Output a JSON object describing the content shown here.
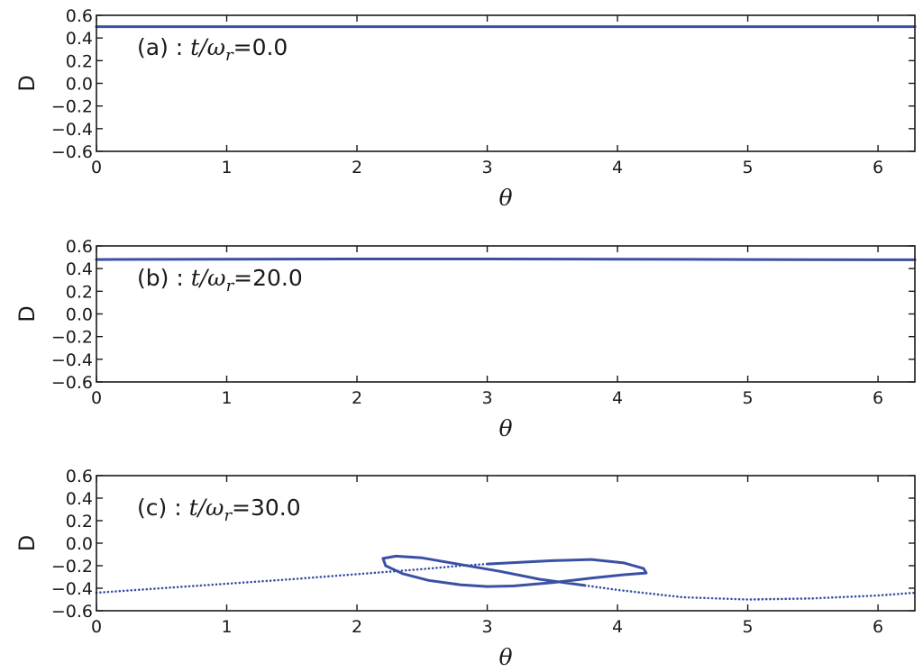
{
  "colors": {
    "series": "#3a50a4",
    "axes": "#1a1a1a",
    "background": "#ffffff"
  },
  "chart_data": [
    {
      "type": "line",
      "panel": "a",
      "annotation": {
        "prefix": "(a) : ",
        "math_t": "t",
        "math_slash": "/",
        "math_omega": "ω",
        "math_sub": "r",
        "value": "=0.0"
      },
      "xlabel": "θ",
      "ylabel": "D",
      "xlim": [
        0,
        6.283
      ],
      "ylim": [
        -0.6,
        0.6
      ],
      "xticks": [
        "0",
        "1",
        "2",
        "3",
        "4",
        "5",
        "6"
      ],
      "yticks": [
        "0.6",
        "0.4",
        "0.2",
        "0.0",
        "−0.2",
        "−0.4",
        "−0.6"
      ],
      "series": [
        {
          "style": "solid",
          "x": [
            0,
            1,
            2,
            3,
            4,
            5,
            6,
            6.283
          ],
          "y": [
            0.5,
            0.5,
            0.5,
            0.5,
            0.5,
            0.5,
            0.5,
            0.5
          ]
        }
      ]
    },
    {
      "type": "line",
      "panel": "b",
      "annotation": {
        "prefix": "(b) : ",
        "math_t": "t",
        "math_slash": "/",
        "math_omega": "ω",
        "math_sub": "r",
        "value": "=20.0"
      },
      "xlabel": "θ",
      "ylabel": "D",
      "xlim": [
        0,
        6.283
      ],
      "ylim": [
        -0.6,
        0.6
      ],
      "xticks": [
        "0",
        "1",
        "2",
        "3",
        "4",
        "5",
        "6"
      ],
      "yticks": [
        "0.6",
        "0.4",
        "0.2",
        "0.0",
        "−0.2",
        "−0.4",
        "−0.6"
      ],
      "series": [
        {
          "style": "solid",
          "x": [
            0,
            1,
            2,
            3,
            4,
            5,
            6,
            6.283
          ],
          "y": [
            0.48,
            0.483,
            0.485,
            0.485,
            0.483,
            0.48,
            0.478,
            0.478
          ]
        }
      ]
    },
    {
      "type": "line",
      "panel": "c",
      "annotation": {
        "prefix": "(c) : ",
        "math_t": "t",
        "math_slash": "/",
        "math_omega": "ω",
        "math_sub": "r",
        "value": "=30.0"
      },
      "xlabel": "θ",
      "ylabel": "D",
      "xlim": [
        0,
        6.283
      ],
      "ylim": [
        -0.6,
        0.6
      ],
      "xticks": [
        "0",
        "1",
        "2",
        "3",
        "4",
        "5",
        "6"
      ],
      "yticks": [
        "0.6",
        "0.4",
        "0.2",
        "0.0",
        "−0.2",
        "−0.4",
        "−0.6"
      ],
      "series": [
        {
          "style": "dotted",
          "x": [
            0,
            0.5,
            1.0,
            1.5,
            2.0,
            2.5,
            2.8,
            3.0
          ],
          "y": [
            -0.44,
            -0.4,
            -0.36,
            -0.32,
            -0.275,
            -0.23,
            -0.2,
            -0.185
          ]
        },
        {
          "style": "solid",
          "x": [
            3.0,
            3.5,
            3.8,
            4.05,
            4.2,
            4.22,
            4.05,
            3.8,
            3.5,
            3.2,
            3.0,
            2.8,
            2.55,
            2.35,
            2.22,
            2.2,
            2.3,
            2.5,
            2.8,
            3.1,
            3.4,
            3.75
          ],
          "y": [
            -0.185,
            -0.155,
            -0.145,
            -0.175,
            -0.225,
            -0.265,
            -0.28,
            -0.31,
            -0.35,
            -0.38,
            -0.385,
            -0.37,
            -0.33,
            -0.27,
            -0.2,
            -0.135,
            -0.115,
            -0.13,
            -0.19,
            -0.25,
            -0.32,
            -0.375
          ]
        },
        {
          "style": "dotted",
          "x": [
            3.75,
            4.0,
            4.5,
            5.0,
            5.5,
            6.0,
            6.283
          ],
          "y": [
            -0.375,
            -0.415,
            -0.48,
            -0.5,
            -0.49,
            -0.465,
            -0.44
          ]
        }
      ]
    }
  ]
}
